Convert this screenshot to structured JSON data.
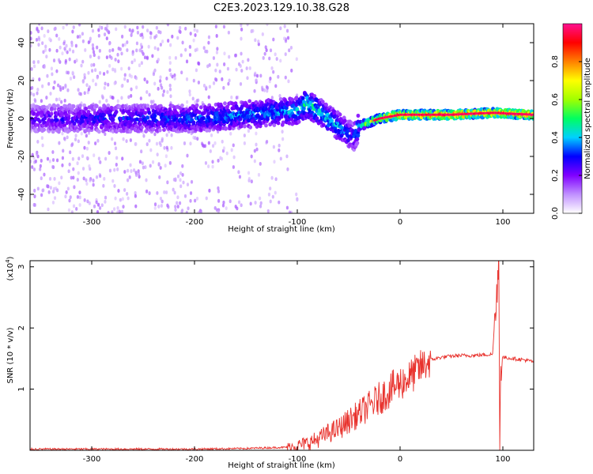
{
  "figure": {
    "title": "C2E3.2023.129.10.38.G28"
  },
  "chart_data": [
    {
      "type": "heatmap",
      "xlabel": "Height of straight line (km)",
      "ylabel": "Frequency (Hz)",
      "xlim": [
        -360,
        130
      ],
      "ylim": [
        -50,
        50
      ],
      "x_ticks": [
        -300,
        -200,
        -100,
        0,
        100
      ],
      "y_ticks": [
        -40,
        -20,
        0,
        20,
        40
      ],
      "colorbar": {
        "label": "Normalized spectral amplitude",
        "range": [
          0.0,
          1.0
        ],
        "ticks": [
          "0.0",
          "0.2",
          "0.4",
          "0.6",
          "0.8"
        ],
        "colors": [
          "#ffffff",
          "#c090ff",
          "#8000ff",
          "#0000ff",
          "#00d0ff",
          "#00ff60",
          "#a0ff00",
          "#ffff00",
          "#ff8000",
          "#ff0000",
          "#ff1090"
        ]
      },
      "ridge": {
        "description_values": [
          {
            "x": -360,
            "freq": 0,
            "amp": 0.25
          },
          {
            "x": -200,
            "freq": 0,
            "amp": 0.35
          },
          {
            "x": -100,
            "freq": 4,
            "amp": 0.4
          },
          {
            "x": -90,
            "freq": 8,
            "amp": 0.5
          },
          {
            "x": -60,
            "freq": -4,
            "amp": 0.4
          },
          {
            "x": -45,
            "freq": -10,
            "amp": 0.3
          },
          {
            "x": -40,
            "freq": -4,
            "amp": 0.5
          },
          {
            "x": -20,
            "freq": 0,
            "amp": 0.8
          },
          {
            "x": 0,
            "freq": 2,
            "amp": 0.9
          },
          {
            "x": 50,
            "freq": 2,
            "amp": 0.95
          },
          {
            "x": 90,
            "freq": 3,
            "amp": 0.9
          },
          {
            "x": 130,
            "freq": 2,
            "amp": 0.9
          }
        ]
      }
    },
    {
      "type": "line",
      "xlabel": "Height of straight line (km)",
      "ylabel": "SNR (10 * v/v)",
      "y_multiplier": "(x10",
      "y_multiplier_exp": "4",
      "y_multiplier_close": ")",
      "xlim": [
        -360,
        130
      ],
      "ylim": [
        0,
        3.1
      ],
      "x_ticks": [
        -300,
        -200,
        -100,
        0,
        100
      ],
      "y_ticks": [
        1,
        2,
        3
      ],
      "series": [
        {
          "color": "#e8322d",
          "x": [
            -360,
            -300,
            -200,
            -150,
            -110,
            -100,
            -90,
            -80,
            -70,
            -60,
            -50,
            -40,
            -30,
            -20,
            -10,
            0,
            10,
            20,
            30,
            40,
            50,
            60,
            70,
            80,
            90,
            94,
            96,
            97,
            98,
            100,
            110,
            120,
            130
          ],
          "y": [
            0.02,
            0.02,
            0.02,
            0.03,
            0.05,
            0.08,
            0.12,
            0.18,
            0.28,
            0.35,
            0.48,
            0.6,
            0.72,
            0.85,
            0.98,
            1.1,
            1.2,
            1.35,
            1.48,
            1.52,
            1.54,
            1.55,
            1.55,
            1.56,
            1.57,
            2.6,
            3.1,
            0.05,
            1.5,
            1.52,
            1.5,
            1.48,
            1.45
          ]
        }
      ]
    }
  ]
}
